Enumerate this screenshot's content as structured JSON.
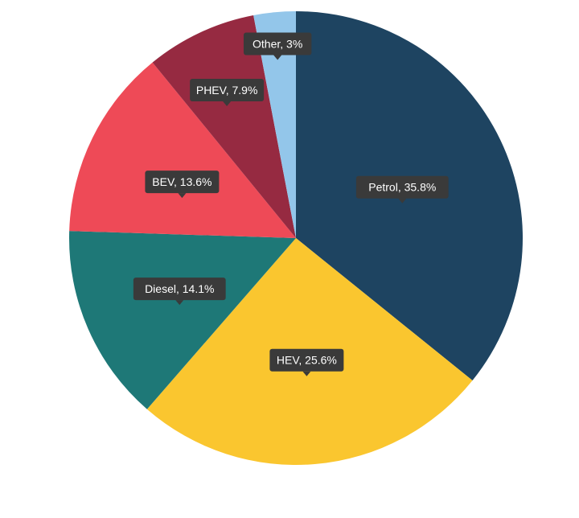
{
  "chart_data": {
    "type": "pie",
    "title": "",
    "slices": [
      {
        "label": "Petrol, 35.8%",
        "name": "Petrol",
        "value": 35.8,
        "color": "#1e4461"
      },
      {
        "label": "HEV, 25.6%",
        "name": "HEV",
        "value": 25.6,
        "color": "#fac62f"
      },
      {
        "label": "Diesel, 14.1%",
        "name": "Diesel",
        "value": 14.1,
        "color": "#1e7877"
      },
      {
        "label": "BEV, 13.6%",
        "name": "BEV",
        "value": 13.6,
        "color": "#ee4a57"
      },
      {
        "label": "PHEV, 7.9%",
        "name": "PHEV",
        "value": 7.9,
        "color": "#962a41"
      },
      {
        "label": "Other, 3%",
        "name": "Other",
        "value": 3.0,
        "color": "#93c6ea"
      }
    ],
    "legend": "none",
    "data_labels": "on-slice callouts"
  }
}
